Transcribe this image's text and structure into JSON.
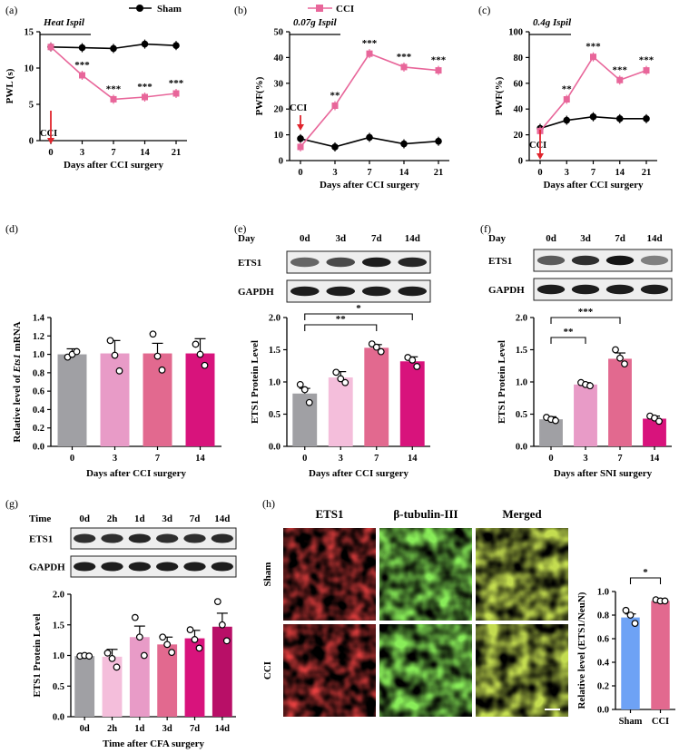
{
  "chart_data": [
    {
      "id": "a",
      "type": "line",
      "panel_label": "(a)",
      "title": "",
      "annotation": "Heat Ispil",
      "xlabel": "Days after CCI surgery",
      "ylabel": "PWL (s)",
      "categories": [
        "0",
        "3",
        "7",
        "14",
        "21"
      ],
      "ylim": [
        0,
        15
      ],
      "yticks": [
        "0",
        "5",
        "10",
        "15"
      ],
      "series": [
        {
          "name": "Sham",
          "values": [
            12.9,
            12.8,
            12.7,
            13.3,
            13.1
          ],
          "color": "#000000"
        },
        {
          "name": "CCI",
          "values": [
            12.9,
            9.0,
            5.7,
            6.0,
            6.5
          ],
          "color": "#e8669a"
        }
      ],
      "significance": [
        "",
        "***",
        "***",
        "***",
        "***"
      ],
      "arrow_label": "CCI",
      "legend": {
        "sham": "Sham"
      }
    },
    {
      "id": "b",
      "type": "line",
      "panel_label": "(b)",
      "title": "",
      "annotation": "0.07g Ispil",
      "xlabel": "Days after CCI surgery",
      "ylabel": "PWF(%)",
      "categories": [
        "0",
        "3",
        "7",
        "14",
        "21"
      ],
      "ylim": [
        0,
        50
      ],
      "yticks": [
        "0",
        "10",
        "20",
        "30",
        "40",
        "50"
      ],
      "series": [
        {
          "name": "Sham",
          "values": [
            8.5,
            5.3,
            9.0,
            6.5,
            7.5
          ],
          "color": "#000000"
        },
        {
          "name": "CCI",
          "values": [
            5.3,
            21.3,
            41.5,
            36.3,
            35.0
          ],
          "color": "#e8669a"
        }
      ],
      "significance": [
        "",
        "**",
        "***",
        "***",
        "***"
      ],
      "arrow_label": "CCI",
      "legend": {
        "cci": "CCI"
      }
    },
    {
      "id": "c",
      "type": "line",
      "panel_label": "(c)",
      "title": "",
      "annotation": "0.4g Ispil",
      "xlabel": "Days after CCI surgery",
      "ylabel": "PWF(%)",
      "categories": [
        "0",
        "3",
        "7",
        "14",
        "21"
      ],
      "ylim": [
        0,
        100
      ],
      "yticks": [
        "0",
        "20",
        "40",
        "60",
        "80",
        "100"
      ],
      "series": [
        {
          "name": "Sham",
          "values": [
            25.0,
            31.3,
            34.0,
            32.5,
            32.5
          ],
          "color": "#000000"
        },
        {
          "name": "CCI",
          "values": [
            23.0,
            47.5,
            80.5,
            62.5,
            70.0
          ],
          "color": "#e8669a"
        }
      ],
      "significance": [
        "",
        "**",
        "***",
        "***",
        "***"
      ],
      "arrow_label": "CCI"
    },
    {
      "id": "d",
      "type": "bar",
      "panel_label": "(d)",
      "xlabel": "Days after CCI surgery",
      "ylabel": "Relative level of Ets1 mRNA",
      "categories": [
        "0",
        "3",
        "7",
        "14"
      ],
      "ylim": [
        0,
        1.4
      ],
      "yticks": [
        "0.0",
        "0.2",
        "0.4",
        "0.6",
        "0.8",
        "1.0",
        "1.2",
        "1.4"
      ],
      "values": [
        1.0,
        1.01,
        1.01,
        1.01
      ],
      "errors": [
        0.06,
        0.14,
        0.11,
        0.16
      ],
      "points": [
        [
          0.97,
          1.0,
          1.03
        ],
        [
          1.15,
          0.99,
          0.82
        ],
        [
          1.22,
          0.98,
          0.83
        ],
        [
          1.11,
          1.0,
          0.88
        ]
      ],
      "colors": [
        "#a0a0a4",
        "#e89bc7",
        "#e2698f",
        "#d8137c"
      ]
    },
    {
      "id": "e",
      "type": "bar",
      "panel_label": "(e)",
      "xlabel": "Days after CCI surgery",
      "ylabel": "ETS1 Protein Level",
      "categories": [
        "0",
        "3",
        "7",
        "14"
      ],
      "ylim": [
        0,
        2.0
      ],
      "yticks": [
        "0.0",
        "0.5",
        "1.0",
        "1.5",
        "2.0"
      ],
      "values": [
        0.82,
        1.07,
        1.53,
        1.32
      ],
      "errors": [
        0.08,
        0.09,
        0.05,
        0.07
      ],
      "points": [
        [
          0.96,
          0.88,
          0.68
        ],
        [
          1.15,
          1.05,
          0.99
        ],
        [
          1.59,
          1.54,
          1.47
        ],
        [
          1.38,
          1.34,
          1.24
        ]
      ],
      "colors": [
        "#a0a0a4",
        "#f4bedb",
        "#e2698f",
        "#d8137c"
      ],
      "brackets": [
        {
          "from": 0,
          "to": 2,
          "label": "**"
        },
        {
          "from": 0,
          "to": 3,
          "label": "*"
        }
      ],
      "blot": {
        "lanes_label": "Day",
        "lanes": [
          "0d",
          "3d",
          "7d",
          "14d"
        ],
        "rows": [
          "ETS1",
          "GAPDH"
        ],
        "ets1_intensity": [
          0.55,
          0.7,
          0.95,
          0.9
        ]
      }
    },
    {
      "id": "f",
      "type": "bar",
      "panel_label": "(f)",
      "xlabel": "Days after SNI surgery",
      "ylabel": "ETS1 Protein Level",
      "categories": [
        "0",
        "3",
        "7",
        "14"
      ],
      "ylim": [
        0,
        2.0
      ],
      "yticks": [
        "0.0",
        "0.5",
        "1.0",
        "1.5",
        "2.0"
      ],
      "values": [
        0.42,
        0.96,
        1.36,
        0.43
      ],
      "errors": [
        0.04,
        0.03,
        0.09,
        0.04
      ],
      "points": [
        [
          0.45,
          0.42,
          0.4
        ],
        [
          0.99,
          0.96,
          0.94
        ],
        [
          1.5,
          1.37,
          1.28
        ],
        [
          0.47,
          0.44,
          0.39
        ]
      ],
      "colors": [
        "#a0a0a4",
        "#e89bc7",
        "#e2698f",
        "#d8137c"
      ],
      "brackets": [
        {
          "from": 0,
          "to": 1,
          "label": "**"
        },
        {
          "from": 0,
          "to": 2,
          "label": "***"
        }
      ],
      "blot": {
        "lanes_label": "Day",
        "lanes": [
          "0d",
          "3d",
          "7d",
          "14d"
        ],
        "rows": [
          "ETS1",
          "GAPDH"
        ],
        "ets1_intensity": [
          0.6,
          0.85,
          1.0,
          0.4
        ]
      }
    },
    {
      "id": "g",
      "type": "bar",
      "panel_label": "(g)",
      "xlabel": "Time after CFA surgery",
      "ylabel": "ETS1 Protein Level",
      "categories": [
        "0d",
        "2h",
        "1d",
        "3d",
        "7d",
        "14d"
      ],
      "ylim": [
        0,
        2.0
      ],
      "yticks": [
        "0.0",
        "0.5",
        "1.0",
        "1.5",
        "2.0"
      ],
      "values": [
        0.99,
        0.98,
        1.3,
        1.18,
        1.28,
        1.47
      ],
      "errors": [
        0.02,
        0.12,
        0.18,
        0.12,
        0.13,
        0.22
      ],
      "points": [
        [
          0.99,
          1.0,
          0.99
        ],
        [
          1.04,
          0.95,
          0.81
        ],
        [
          1.62,
          1.3,
          1.0
        ],
        [
          1.3,
          1.18,
          1.05
        ],
        [
          1.42,
          1.26,
          1.12
        ],
        [
          1.88,
          1.5,
          1.24
        ]
      ],
      "colors": [
        "#a0a0a4",
        "#f4bedb",
        "#e89bc7",
        "#e2698f",
        "#d8137c",
        "#b80f67"
      ],
      "blot": {
        "lanes_label": "Time",
        "lanes": [
          "0d",
          "2h",
          "1d",
          "3d",
          "7d",
          "14d"
        ],
        "rows": [
          "ETS1",
          "GAPDH"
        ],
        "ets1_intensity": [
          0.85,
          0.85,
          0.9,
          0.85,
          0.85,
          0.88
        ]
      }
    },
    {
      "id": "h",
      "type": "bar",
      "panel_label": "(h)",
      "xlabel": "",
      "ylabel": "Relative level (ETS1/NeuN)",
      "categories": [
        "Sham",
        "CCI"
      ],
      "ylim": [
        0,
        1.0
      ],
      "yticks": [
        "0.0",
        "0.2",
        "0.4",
        "0.6",
        "0.8",
        "1.0"
      ],
      "values": [
        0.78,
        0.92
      ],
      "errors": [
        0.03,
        0.01
      ],
      "points": [
        [
          0.84,
          0.8,
          0.73
        ],
        [
          0.93,
          0.92,
          0.92
        ]
      ],
      "colors": [
        "#6ea2f5",
        "#e2698f"
      ],
      "brackets": [
        {
          "from": 0,
          "to": 1,
          "label": "*"
        }
      ],
      "micrograph": {
        "columns": [
          "ETS1",
          "β-tubulin-III",
          "Merged"
        ],
        "rows": [
          "Sham",
          "CCI"
        ]
      }
    }
  ]
}
